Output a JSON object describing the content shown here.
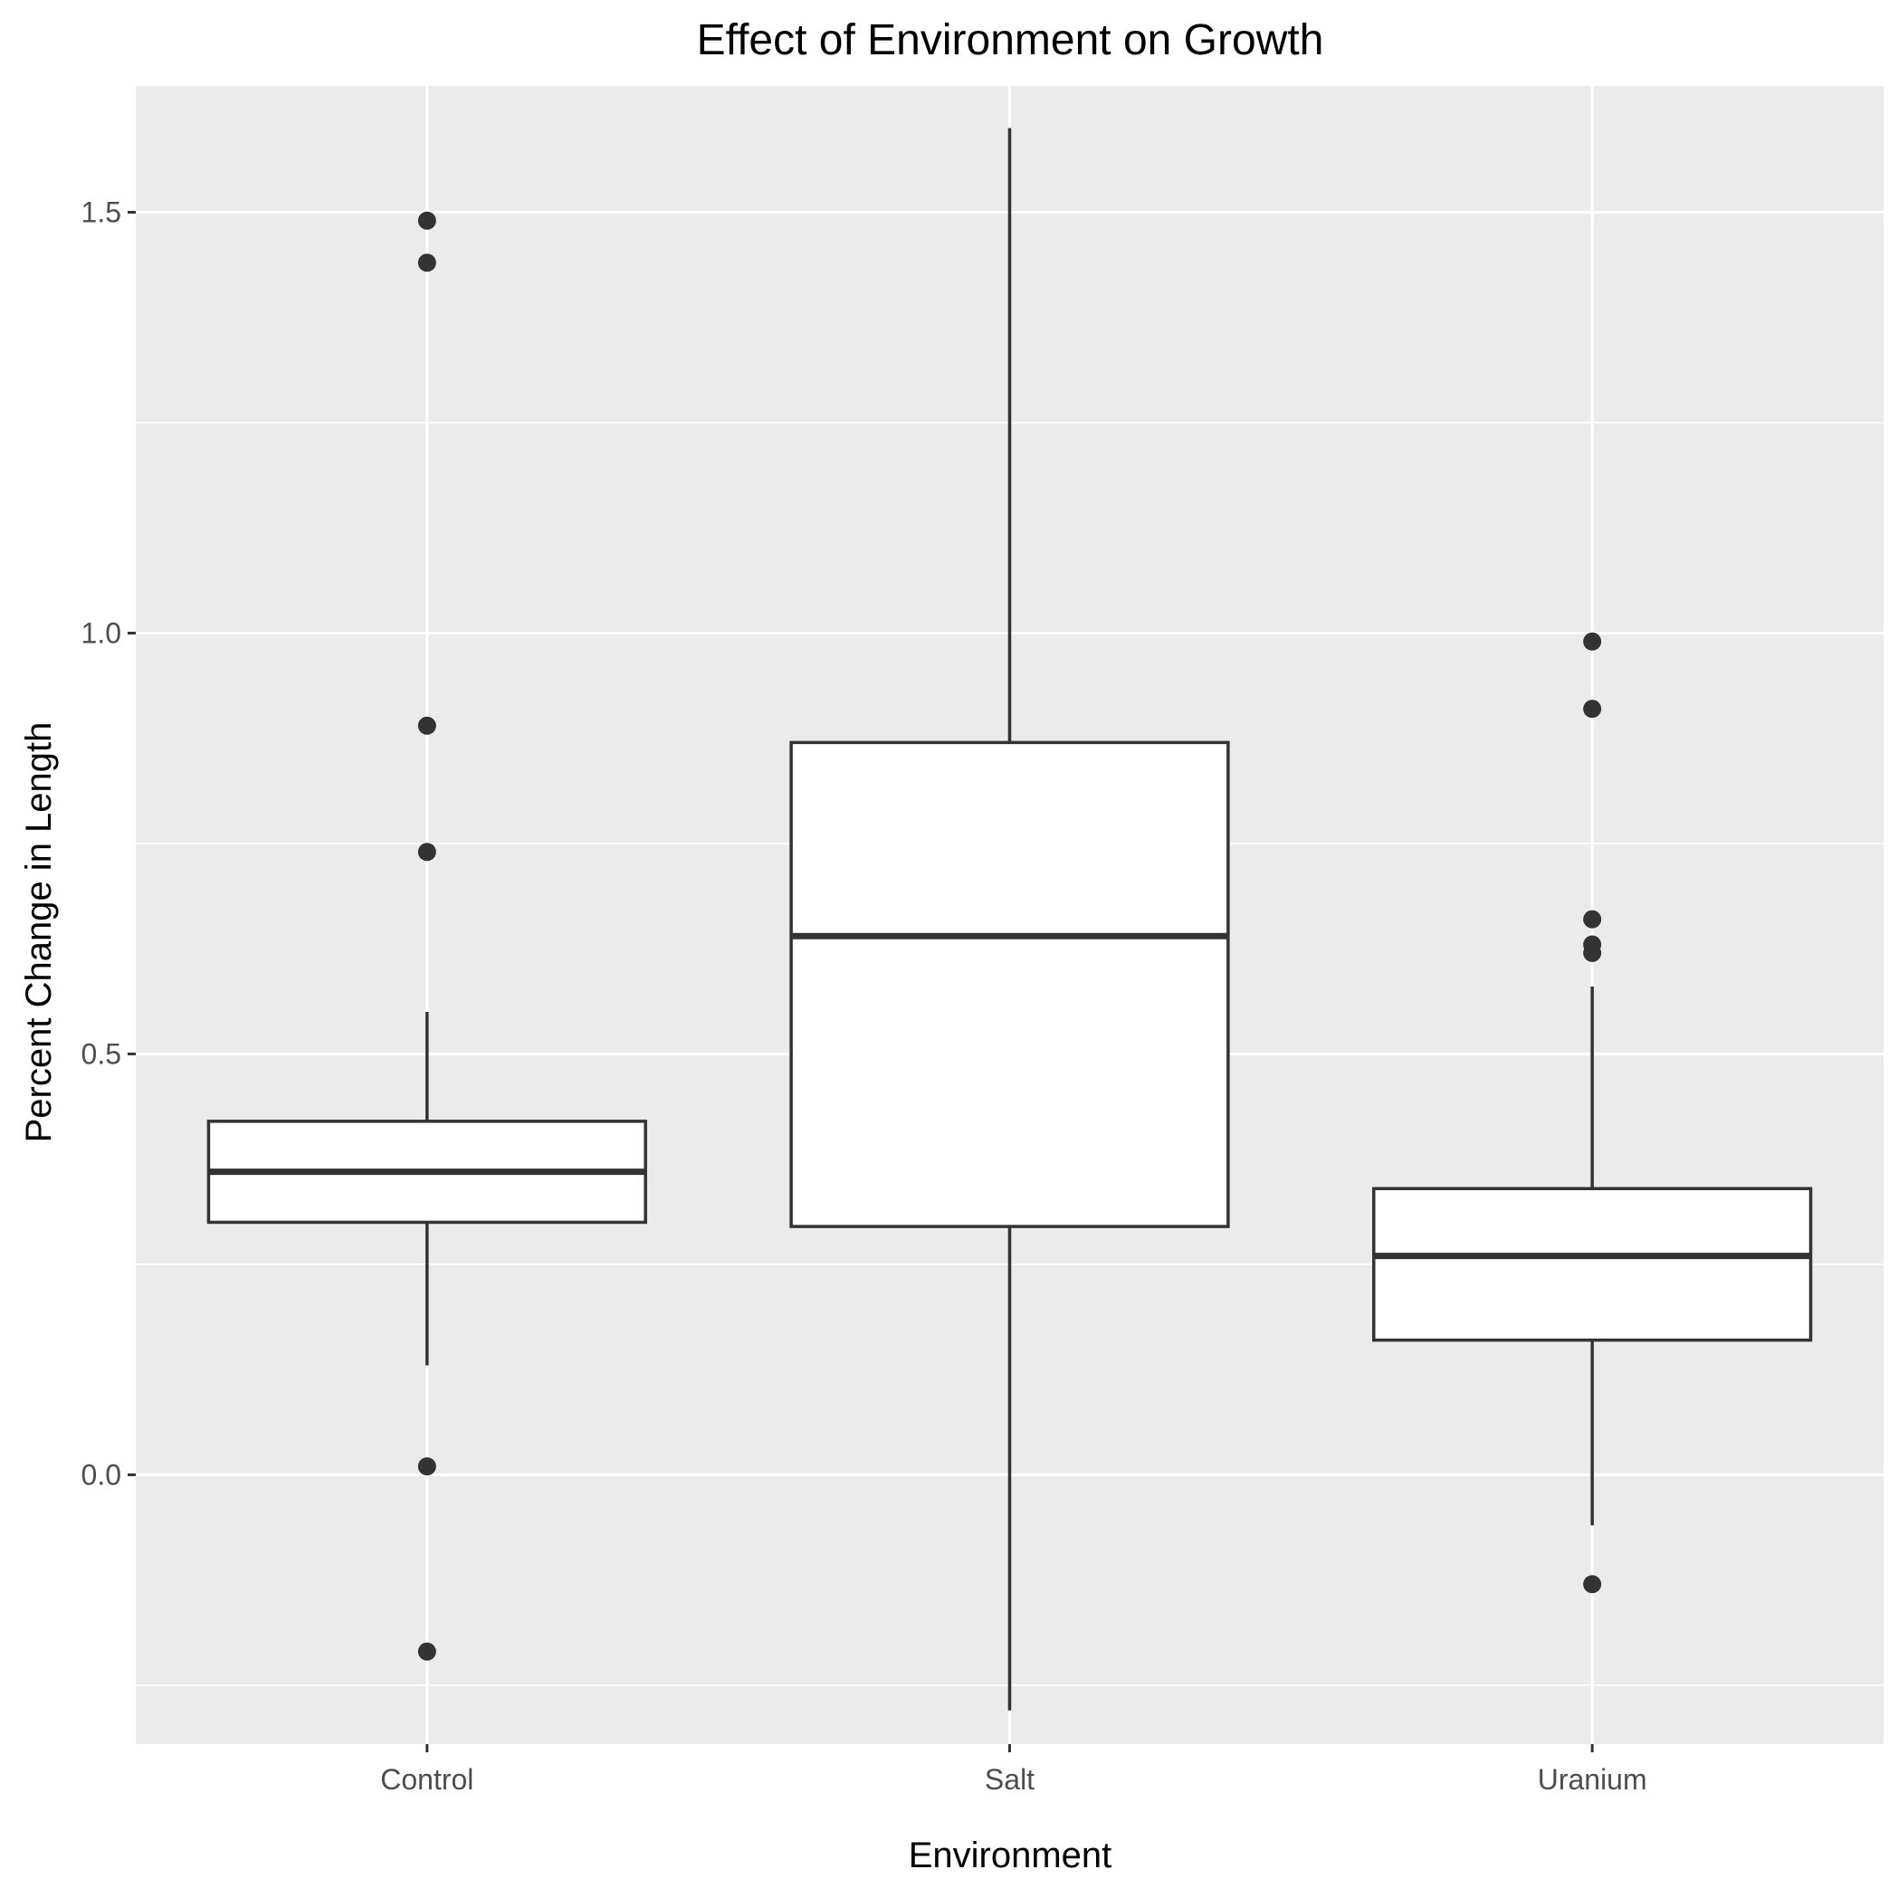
{
  "chart_data": {
    "type": "boxplot",
    "title": "Effect of Environment on Growth",
    "xlabel": "Environment",
    "ylabel": "Percent Change in Length",
    "categories": [
      "Control",
      "Salt",
      "Uranium"
    ],
    "ylim": [
      -0.32,
      1.65
    ],
    "yticks": [
      0.0,
      0.5,
      1.0,
      1.5
    ],
    "ytick_labels": [
      "0.0",
      "0.5",
      "1.0",
      "1.5"
    ],
    "grid": true,
    "boxes": [
      {
        "category": "Control",
        "whisker_low": 0.13,
        "q1": 0.3,
        "median": 0.36,
        "q3": 0.42,
        "whisker_high": 0.55,
        "outliers": [
          1.49,
          1.44,
          0.89,
          0.74,
          0.01,
          -0.21
        ]
      },
      {
        "category": "Salt",
        "whisker_low": -0.28,
        "q1": 0.295,
        "median": 0.64,
        "q3": 0.87,
        "whisker_high": 1.6,
        "outliers": []
      },
      {
        "category": "Uranium",
        "whisker_low": -0.06,
        "q1": 0.16,
        "median": 0.26,
        "q3": 0.34,
        "whisker_high": 0.58,
        "outliers": [
          0.99,
          0.91,
          0.66,
          0.63,
          0.62,
          -0.13
        ]
      }
    ],
    "colors": {
      "panel": "#ebebeb",
      "grid": "#ffffff",
      "box_fill": "#ffffff",
      "box_line": "#333333",
      "outlier": "#333333"
    }
  }
}
